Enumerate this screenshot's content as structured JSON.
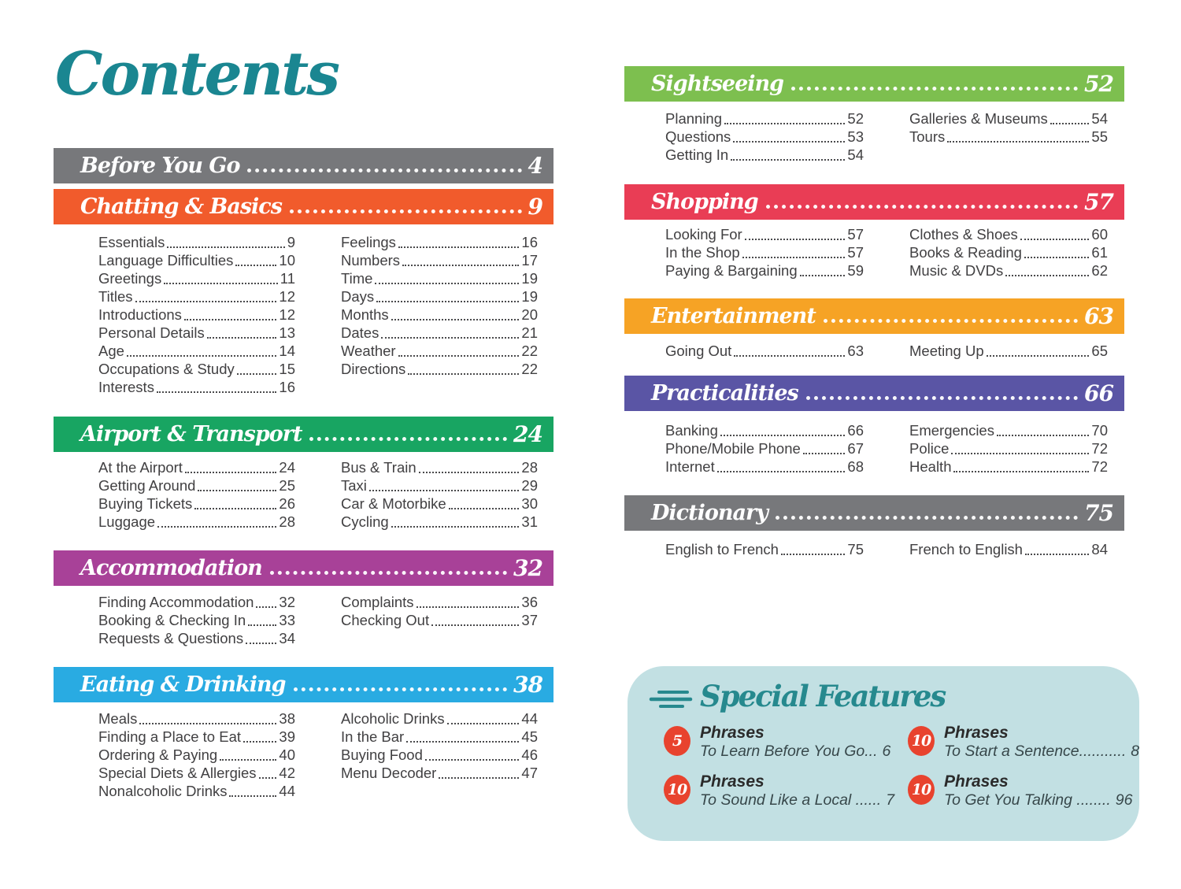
{
  "page": {
    "title": "Contents"
  },
  "colors": {
    "title_teal": "#1a8691",
    "entry_text": "#414042",
    "features_bg": "#c2e0e3",
    "features_title": "#26898e",
    "badge_red": "#e8432e"
  },
  "sections": {
    "left": [
      {
        "id": "before-you-go",
        "title": "Before You Go",
        "page": "4",
        "color": "#77787b",
        "entries_left": [],
        "entries_right": []
      },
      {
        "id": "chatting-basics",
        "title": "Chatting & Basics",
        "page": "9",
        "color": "#f15b2c",
        "entries_left": [
          {
            "label": "Essentials",
            "page": "9"
          },
          {
            "label": "Language Difficulties",
            "page": "10"
          },
          {
            "label": "Greetings",
            "page": "11"
          },
          {
            "label": "Titles",
            "page": "12"
          },
          {
            "label": "Introductions",
            "page": "12"
          },
          {
            "label": "Personal Details",
            "page": "13"
          },
          {
            "label": "Age",
            "page": "14"
          },
          {
            "label": "Occupations & Study",
            "page": "15"
          },
          {
            "label": "Interests",
            "page": "16"
          }
        ],
        "entries_right": [
          {
            "label": "Feelings",
            "page": "16"
          },
          {
            "label": "Numbers",
            "page": "17"
          },
          {
            "label": "Time",
            "page": "19"
          },
          {
            "label": "Days",
            "page": "19"
          },
          {
            "label": "Months",
            "page": "20"
          },
          {
            "label": "Dates",
            "page": "21"
          },
          {
            "label": "Weather",
            "page": "22"
          },
          {
            "label": "Directions",
            "page": "22"
          }
        ]
      },
      {
        "id": "airport-transport",
        "title": "Airport & Transport",
        "page": "24",
        "color": "#18a562",
        "entries_left": [
          {
            "label": "At the Airport",
            "page": "24"
          },
          {
            "label": "Getting Around",
            "page": "25"
          },
          {
            "label": "Buying Tickets",
            "page": "26"
          },
          {
            "label": "Luggage",
            "page": "28"
          }
        ],
        "entries_right": [
          {
            "label": "Bus & Train",
            "page": "28"
          },
          {
            "label": "Taxi",
            "page": "29"
          },
          {
            "label": "Car & Motorbike",
            "page": "30"
          },
          {
            "label": "Cycling",
            "page": "31"
          }
        ]
      },
      {
        "id": "accommodation",
        "title": "Accommodation",
        "page": "32",
        "color": "#a84198",
        "entries_left": [
          {
            "label": "Finding Accommodation",
            "page": "32"
          },
          {
            "label": "Booking & Checking In",
            "page": "33"
          },
          {
            "label": "Requests & Questions",
            "page": "34"
          }
        ],
        "entries_right": [
          {
            "label": "Complaints",
            "page": "36"
          },
          {
            "label": "Checking Out",
            "page": "37"
          }
        ]
      },
      {
        "id": "eating-drinking",
        "title": "Eating & Drinking",
        "page": "38",
        "color": "#29abe2",
        "entries_left": [
          {
            "label": "Meals",
            "page": "38"
          },
          {
            "label": "Finding a Place to Eat",
            "page": "39"
          },
          {
            "label": "Ordering & Paying",
            "page": "40"
          },
          {
            "label": "Special Diets & Allergies",
            "page": "42"
          },
          {
            "label": "Nonalcoholic Drinks",
            "page": "44"
          }
        ],
        "entries_right": [
          {
            "label": "Alcoholic Drinks",
            "page": "44"
          },
          {
            "label": "In the Bar",
            "page": "45"
          },
          {
            "label": "Buying Food",
            "page": "46"
          },
          {
            "label": "Menu Decoder",
            "page": "47"
          }
        ]
      }
    ],
    "right": [
      {
        "id": "sightseeing",
        "title": "Sightseeing",
        "page": "52",
        "color": "#7dbf4f",
        "entries_left": [
          {
            "label": "Planning",
            "page": "52"
          },
          {
            "label": "Questions",
            "page": "53"
          },
          {
            "label": "Getting In",
            "page": "54"
          }
        ],
        "entries_right": [
          {
            "label": "Galleries & Museums",
            "page": "54"
          },
          {
            "label": "Tours",
            "page": "55"
          }
        ]
      },
      {
        "id": "shopping",
        "title": "Shopping",
        "page": "57",
        "color": "#e93d55",
        "entries_left": [
          {
            "label": "Looking For",
            "page": "57"
          },
          {
            "label": "In the Shop",
            "page": "57"
          },
          {
            "label": "Paying & Bargaining",
            "page": "59"
          }
        ],
        "entries_right": [
          {
            "label": "Clothes & Shoes",
            "page": "60"
          },
          {
            "label": "Books & Reading",
            "page": "61"
          },
          {
            "label": "Music & DVDs",
            "page": "62"
          }
        ]
      },
      {
        "id": "entertainment",
        "title": "Entertainment",
        "page": "63",
        "color": "#f6a325",
        "entries_left": [
          {
            "label": "Going Out",
            "page": "63"
          }
        ],
        "entries_right": [
          {
            "label": "Meeting Up",
            "page": "65"
          }
        ]
      },
      {
        "id": "practicalities",
        "title": "Practicalities",
        "page": "66",
        "color": "#5a55a5",
        "entries_left": [
          {
            "label": "Banking",
            "page": "66"
          },
          {
            "label": "Phone/Mobile Phone",
            "page": "67"
          },
          {
            "label": "Internet",
            "page": "68"
          }
        ],
        "entries_right": [
          {
            "label": "Emergencies",
            "page": "70"
          },
          {
            "label": "Police",
            "page": "72"
          },
          {
            "label": "Health",
            "page": "72"
          }
        ]
      },
      {
        "id": "dictionary",
        "title": "Dictionary",
        "page": "75",
        "color": "#77787b",
        "entries_left": [
          {
            "label": "English to French",
            "page": "75"
          }
        ],
        "entries_right": [
          {
            "label": "French to English",
            "page": "84"
          }
        ]
      }
    ]
  },
  "special_features": {
    "title": "Special Features",
    "items": [
      {
        "count": "5",
        "heading": "Phrases",
        "subtitle": "To Learn Before You Go...",
        "page": "6"
      },
      {
        "count": "10",
        "heading": "Phrases",
        "subtitle": "To Start a Sentence...........",
        "page": "8"
      },
      {
        "count": "10",
        "heading": "Phrases",
        "subtitle": "To Sound Like a Local ......",
        "page": "7"
      },
      {
        "count": "10",
        "heading": "Phrases",
        "subtitle": "To Get You Talking ........",
        "page": "96"
      }
    ]
  }
}
